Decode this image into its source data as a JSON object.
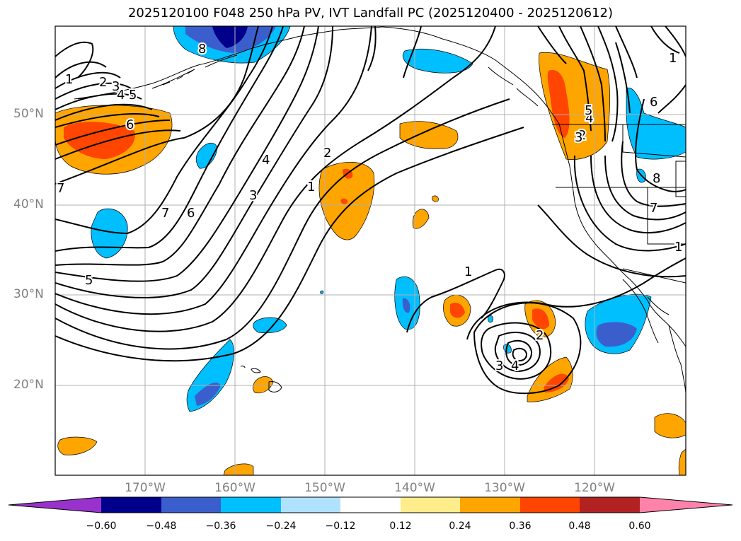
{
  "title": "2025120100 F048 250 hPa PV, IVT Landfall PC (2025120400 - 2025120612)",
  "lat_labels": [
    "50°N",
    "40°N",
    "30°N",
    "20°N"
  ],
  "lon_labels": [
    "170°W",
    "160°W",
    "150°W",
    "140°W",
    "130°W",
    "120°W"
  ],
  "colorbar": {
    "ticks": [
      "−0.60",
      "−0.48",
      "−0.36",
      "−0.24",
      "−0.12",
      "0.12",
      "0.24",
      "0.36",
      "0.48",
      "0.60"
    ],
    "colors": [
      "#9932cc",
      "#00008b",
      "#3a5fcd",
      "#00bfff",
      "#b0e2ff",
      "#ffffff",
      "#ffec8b",
      "#ffa500",
      "#ff4500",
      "#b22222",
      "#ff82ab"
    ]
  },
  "contour_labels": [
    "1",
    "2",
    "3",
    "4",
    "5",
    "6",
    "7",
    "8",
    "1",
    "2",
    "3",
    "4",
    "5",
    "6",
    "7",
    "1",
    "2",
    "3",
    "4",
    "1",
    "2",
    "3",
    "4",
    "5",
    "6",
    "7",
    "8",
    "1"
  ]
}
